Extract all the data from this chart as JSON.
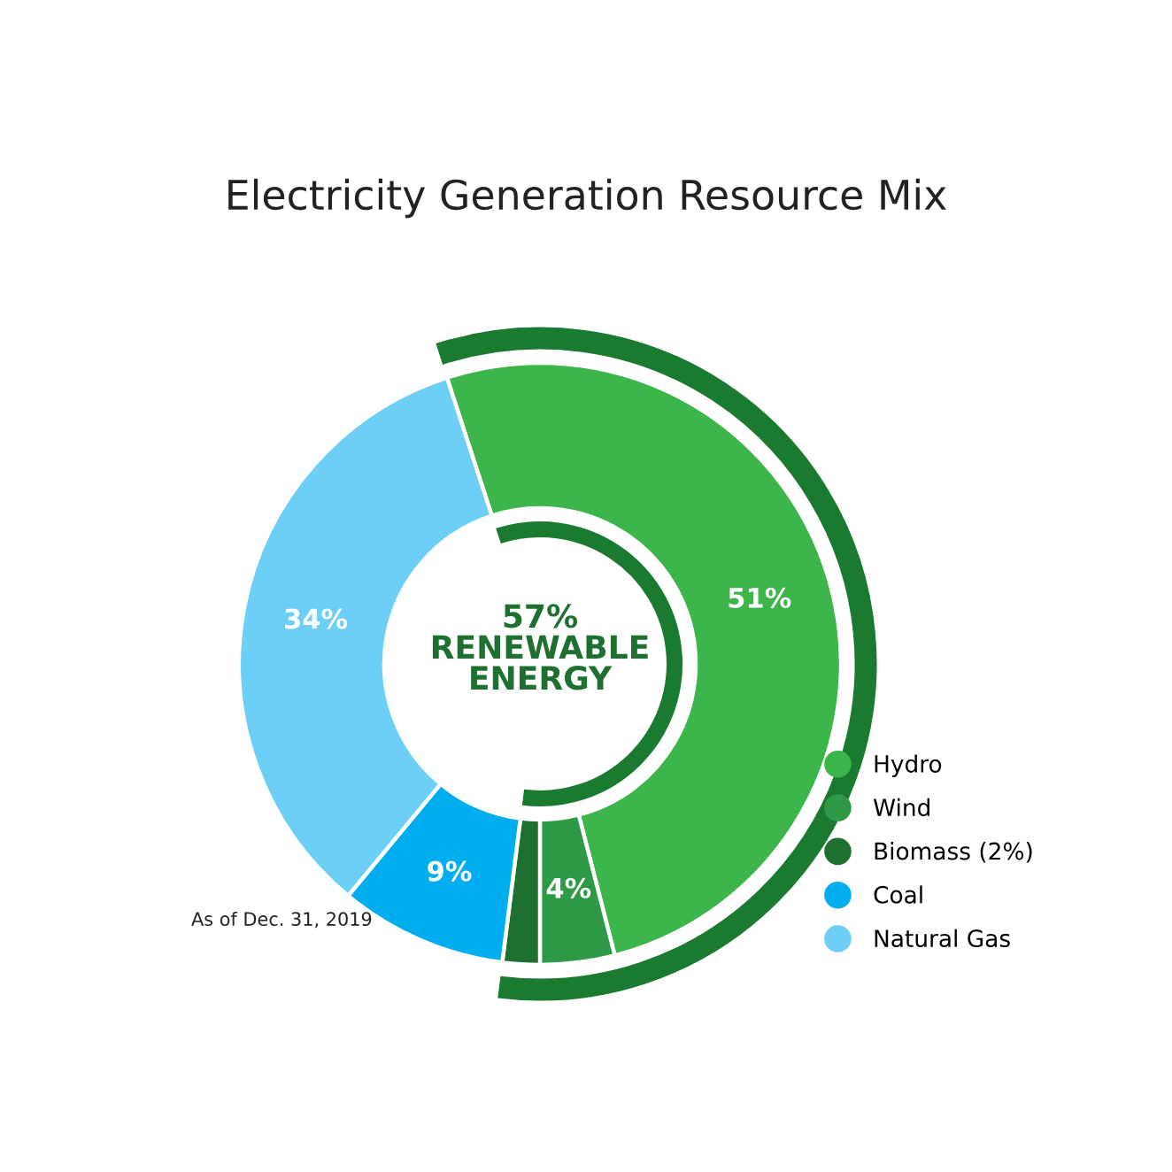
{
  "chart_data": {
    "type": "donut",
    "title": "Electricity Generation Resource Mix",
    "categories": [
      "Hydro",
      "Wind",
      "Biomass (2%)",
      "Coal",
      "Natural Gas"
    ],
    "values": [
      51,
      4,
      2,
      9,
      34
    ],
    "colors": [
      "#3cb54a",
      "#2e9a47",
      "#1d7030",
      "#00aeef",
      "#6dcff5"
    ],
    "value_labels": [
      "51%",
      "4%",
      null,
      "9%",
      "34%"
    ],
    "annotations": [
      "57%\nRENEWABLE\nENERGY",
      "As of Dec. 31, 2019"
    ],
    "legend": "bottom right"
  }
}
